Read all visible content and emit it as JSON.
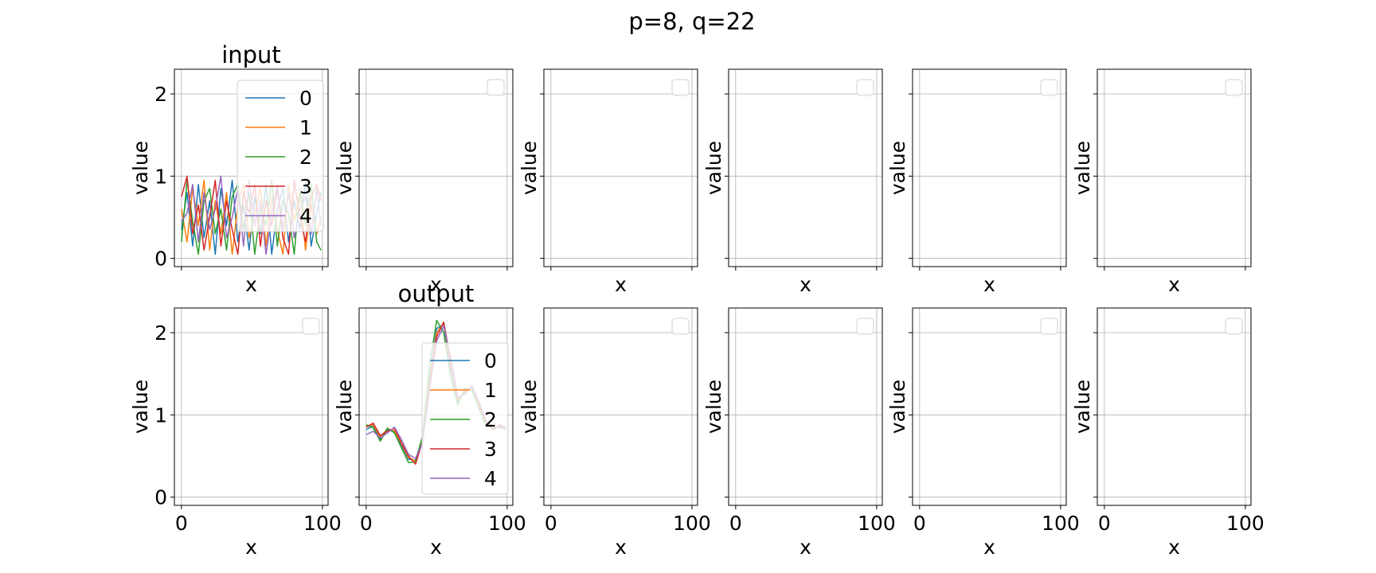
{
  "figure": {
    "suptitle": "p=8, q=22"
  },
  "chart_data": {
    "type": "line",
    "grid": true,
    "xlim": [
      -5,
      104
    ],
    "ylim": [
      -0.1,
      2.3
    ],
    "x_ticks": [
      0,
      100
    ],
    "x_tick_labels": [
      "0",
      "100"
    ],
    "y_ticks": [
      0,
      1,
      2
    ],
    "y_tick_labels": [
      "0",
      "1",
      "2"
    ],
    "xlabel": "x",
    "ylabel": "value",
    "series_colors": [
      "#1f77b4",
      "#ff7f0e",
      "#2ca02c",
      "#d62728",
      "#9467bd"
    ],
    "legend_labels": [
      "0",
      "1",
      "2",
      "3",
      "4"
    ],
    "panels": [
      {
        "row": 0,
        "col": 0,
        "title": "input",
        "has_data": true,
        "legend": "upper right"
      },
      {
        "row": 0,
        "col": 1,
        "title": "",
        "has_data": false,
        "legend": "empty"
      },
      {
        "row": 0,
        "col": 2,
        "title": "",
        "has_data": false,
        "legend": "empty"
      },
      {
        "row": 0,
        "col": 3,
        "title": "",
        "has_data": false,
        "legend": "empty"
      },
      {
        "row": 0,
        "col": 4,
        "title": "",
        "has_data": false,
        "legend": "empty"
      },
      {
        "row": 0,
        "col": 5,
        "title": "",
        "has_data": false,
        "legend": "empty"
      },
      {
        "row": 1,
        "col": 0,
        "title": "",
        "has_data": false,
        "legend": "empty"
      },
      {
        "row": 1,
        "col": 1,
        "title": "output",
        "has_data": true,
        "legend": "lower right"
      },
      {
        "row": 1,
        "col": 2,
        "title": "",
        "has_data": false,
        "legend": "empty"
      },
      {
        "row": 1,
        "col": 3,
        "title": "",
        "has_data": false,
        "legend": "empty"
      },
      {
        "row": 1,
        "col": 4,
        "title": "",
        "has_data": false,
        "legend": "empty"
      },
      {
        "row": 1,
        "col": 5,
        "title": "",
        "has_data": false,
        "legend": "empty"
      }
    ],
    "input": {
      "x": [
        0,
        4,
        8,
        12,
        16,
        20,
        24,
        28,
        32,
        36,
        40,
        44,
        48,
        52,
        56,
        60,
        64,
        68,
        72,
        76,
        80,
        84,
        88,
        92,
        96,
        99
      ],
      "series": [
        {
          "name": "0",
          "values": [
            0.35,
            0.8,
            0.15,
            0.9,
            0.25,
            0.7,
            0.05,
            0.85,
            0.4,
            0.95,
            0.2,
            0.65,
            0.1,
            0.75,
            0.3,
            0.9,
            0.05,
            0.6,
            0.85,
            0.2,
            0.7,
            0.35,
            0.95,
            0.15,
            0.55,
            0.8
          ]
        },
        {
          "name": "1",
          "values": [
            0.6,
            0.2,
            0.85,
            0.4,
            0.95,
            0.1,
            0.7,
            0.3,
            0.8,
            0.05,
            0.65,
            0.9,
            0.25,
            0.55,
            0.85,
            0.15,
            0.75,
            0.35,
            0.05,
            0.9,
            0.45,
            0.8,
            0.1,
            0.65,
            0.3,
            0.5
          ]
        },
        {
          "name": "2",
          "values": [
            0.2,
            0.95,
            0.45,
            0.05,
            0.7,
            0.85,
            0.3,
            0.6,
            0.1,
            0.75,
            0.9,
            0.35,
            0.8,
            0.05,
            0.6,
            0.4,
            0.95,
            0.15,
            0.7,
            0.55,
            0.05,
            0.85,
            0.4,
            0.9,
            0.2,
            0.1
          ]
        },
        {
          "name": "3",
          "values": [
            0.75,
            1.0,
            0.3,
            0.65,
            0.1,
            0.5,
            0.95,
            0.15,
            0.7,
            0.35,
            0.05,
            0.8,
            0.55,
            0.9,
            0.15,
            0.7,
            0.4,
            0.85,
            0.25,
            0.05,
            0.95,
            0.5,
            0.2,
            0.75,
            0.9,
            0.7
          ]
        },
        {
          "name": "4",
          "values": [
            0.45,
            0.55,
            0.9,
            0.2,
            0.8,
            0.35,
            0.6,
            1.0,
            0.25,
            0.5,
            0.85,
            0.15,
            0.95,
            0.4,
            0.7,
            0.05,
            0.55,
            0.9,
            0.35,
            0.8,
            0.25,
            0.6,
            0.75,
            0.3,
            0.85,
            0.4
          ]
        }
      ]
    },
    "output": {
      "x": [
        0,
        5,
        10,
        15,
        20,
        25,
        30,
        35,
        40,
        45,
        50,
        55,
        60,
        65,
        70,
        75,
        80,
        85,
        90,
        95,
        99
      ],
      "series": [
        {
          "name": "0",
          "values": [
            0.82,
            0.87,
            0.7,
            0.82,
            0.8,
            0.63,
            0.46,
            0.45,
            0.72,
            1.45,
            2.05,
            2.1,
            1.55,
            1.15,
            1.3,
            1.33,
            1.1,
            0.88,
            0.83,
            0.88,
            0.84
          ]
        },
        {
          "name": "1",
          "values": [
            0.86,
            0.88,
            0.73,
            0.83,
            0.81,
            0.65,
            0.48,
            0.44,
            0.7,
            1.4,
            2.0,
            2.12,
            1.6,
            1.18,
            1.28,
            1.35,
            1.12,
            0.9,
            0.85,
            0.86,
            0.83
          ]
        },
        {
          "name": "2",
          "values": [
            0.88,
            0.84,
            0.68,
            0.84,
            0.78,
            0.6,
            0.42,
            0.43,
            0.75,
            1.6,
            2.15,
            2.0,
            1.45,
            1.12,
            1.32,
            1.3,
            1.08,
            0.87,
            0.84,
            0.85,
            0.82
          ]
        },
        {
          "name": "3",
          "values": [
            0.85,
            0.9,
            0.75,
            0.8,
            0.84,
            0.66,
            0.5,
            0.4,
            0.68,
            1.35,
            1.95,
            2.13,
            1.65,
            1.2,
            1.27,
            1.34,
            1.14,
            0.91,
            0.82,
            0.87,
            0.85
          ]
        },
        {
          "name": "4",
          "values": [
            0.76,
            0.8,
            0.72,
            0.78,
            0.85,
            0.7,
            0.52,
            0.47,
            0.66,
            1.3,
            1.9,
            2.08,
            1.7,
            1.22,
            1.25,
            1.36,
            1.16,
            0.93,
            0.86,
            0.84,
            0.86
          ]
        }
      ]
    }
  }
}
